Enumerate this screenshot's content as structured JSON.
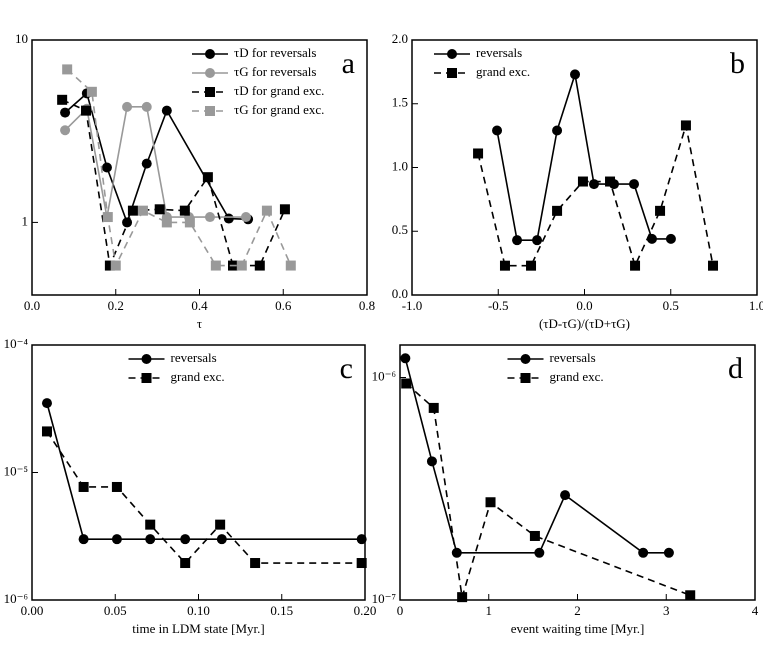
{
  "chart_data": [
    {
      "type": "line",
      "label": "a",
      "xlabel": "τ",
      "xlim": [
        0,
        0.8
      ],
      "xticks": [
        {
          "value": 0,
          "label": "0.0"
        },
        0.2,
        0.4,
        0.6,
        0.8
      ],
      "ylim": [
        0.4,
        10
      ],
      "ylog": true,
      "yticks": [
        1,
        10
      ],
      "legend": "upper right",
      "series": [
        {
          "name": "τD for reversals",
          "color": "#000000",
          "marker": "circle",
          "dashed": false,
          "x": [
            0.079,
            0.131,
            0.179,
            0.227,
            0.274,
            0.322,
            0.47,
            0.516
          ],
          "values": [
            4.0,
            5.1,
            2.0,
            1.0,
            2.1,
            4.1,
            1.05,
            1.04
          ]
        },
        {
          "name": "τG for reversals",
          "color": "#999999",
          "marker": "circle",
          "dashed": false,
          "x": [
            0.079,
            0.131,
            0.179,
            0.227,
            0.274,
            0.322,
            0.375,
            0.425,
            0.511
          ],
          "values": [
            3.2,
            4.2,
            1.07,
            4.3,
            4.3,
            1.07,
            1.07,
            1.07,
            1.07
          ]
        },
        {
          "name": "τD for grand exc.",
          "color": "#000000",
          "marker": "square",
          "dashed": true,
          "x": [
            0.072,
            0.129,
            0.186,
            0.241,
            0.305,
            0.365,
            0.42,
            0.48,
            0.544,
            0.604
          ],
          "values": [
            4.7,
            4.1,
            0.58,
            1.16,
            1.18,
            1.16,
            1.77,
            0.58,
            0.58,
            1.18
          ]
        },
        {
          "name": "τG for grand exc.",
          "color": "#999999",
          "marker": "square",
          "dashed": true,
          "x": [
            0.084,
            0.143,
            0.181,
            0.2,
            0.265,
            0.322,
            0.377,
            0.439,
            0.501,
            0.561,
            0.618
          ],
          "values": [
            6.9,
            5.2,
            1.07,
            0.58,
            1.16,
            1.0,
            1.0,
            0.58,
            0.58,
            1.16,
            0.58
          ]
        }
      ]
    },
    {
      "type": "line",
      "label": "b",
      "xlabel": "(τD-τG)/(τD+τG)",
      "xlim": [
        -1,
        1
      ],
      "xticks": [
        {
          "value": -1,
          "label": "-1.0"
        },
        -0.5,
        {
          "value": 0,
          "label": "0.0"
        },
        0.5,
        {
          "value": 1,
          "label": "1.0"
        }
      ],
      "ylim": [
        0,
        2
      ],
      "yticks": [
        {
          "value": 0,
          "label": "0.0"
        },
        0.5,
        {
          "value": 1,
          "label": "1.0"
        },
        1.5,
        {
          "value": 2,
          "label": "2.0"
        }
      ],
      "legend": "upper left",
      "series": [
        {
          "name": "reversals",
          "color": "#000000",
          "marker": "circle",
          "dashed": false,
          "x": [
            -0.507,
            -0.391,
            -0.275,
            -0.159,
            -0.055,
            0.055,
            0.171,
            0.287,
            0.391,
            0.501
          ],
          "values": [
            1.29,
            0.43,
            0.43,
            1.29,
            1.73,
            0.87,
            0.87,
            0.87,
            0.44,
            0.44
          ]
        },
        {
          "name": "grand exc.",
          "color": "#000000",
          "marker": "square",
          "dashed": true,
          "x": [
            -0.617,
            -0.461,
            -0.31,
            -0.159,
            -0.009,
            0.148,
            0.293,
            0.438,
            0.588,
            0.745
          ],
          "values": [
            1.11,
            0.23,
            0.23,
            0.66,
            0.89,
            0.89,
            0.23,
            0.66,
            1.33,
            0.23
          ]
        }
      ]
    },
    {
      "type": "line",
      "label": "c",
      "xlabel": "time in LDM state  [Myr.]",
      "xlim": [
        0,
        0.2
      ],
      "xticks": [
        {
          "value": 0,
          "label": "0.00"
        },
        {
          "value": 0.05,
          "label": "0.05"
        },
        {
          "value": 0.1,
          "label": "0.10"
        },
        {
          "value": 0.15,
          "label": "0.15"
        },
        {
          "value": 0.2,
          "label": "0.20"
        }
      ],
      "ylim": [
        1e-06,
        0.0001
      ],
      "ylog": true,
      "yticks": [
        {
          "value": 1e-06,
          "label": "10⁻⁶"
        },
        {
          "value": 1e-05,
          "label": "10⁻⁵"
        },
        {
          "value": 0.0001,
          "label": "10⁻⁴"
        }
      ],
      "legend": "upper center",
      "series": [
        {
          "name": "reversals",
          "color": "#000000",
          "marker": "circle",
          "dashed": false,
          "x": [
            0.009,
            0.031,
            0.051,
            0.071,
            0.092,
            0.114,
            0.198
          ],
          "values": [
            3.5e-05,
            3e-06,
            3e-06,
            3e-06,
            3e-06,
            3e-06,
            3e-06
          ]
        },
        {
          "name": "grand exc.",
          "color": "#000000",
          "marker": "square",
          "dashed": true,
          "x": [
            0.009,
            0.031,
            0.051,
            0.071,
            0.092,
            0.113,
            0.134,
            0.198
          ],
          "values": [
            2.1e-05,
            7.7e-06,
            7.7e-06,
            3.9e-06,
            1.95e-06,
            3.9e-06,
            1.95e-06,
            1.95e-06
          ]
        }
      ]
    },
    {
      "type": "line",
      "label": "d",
      "xlabel": "event waiting time [Myr.]",
      "xlim": [
        0,
        4
      ],
      "xticks": [
        0,
        1,
        2,
        3,
        4
      ],
      "ylim": [
        1e-07,
        1.4e-06
      ],
      "ylog": true,
      "yticks": [
        {
          "value": 1e-07,
          "label": "10⁻⁷"
        },
        {
          "value": 1e-06,
          "label": "10⁻⁶"
        }
      ],
      "legend": "upper center",
      "series": [
        {
          "name": "reversals",
          "color": "#000000",
          "marker": "circle",
          "dashed": false,
          "x": [
            0.06,
            0.36,
            0.64,
            1.57,
            1.86,
            2.74,
            3.03
          ],
          "values": [
            1.22e-06,
            4.2e-07,
            1.63e-07,
            1.63e-07,
            2.96e-07,
            1.63e-07,
            1.63e-07
          ]
        },
        {
          "name": "grand exc.",
          "color": "#000000",
          "marker": "square",
          "dashed": true,
          "x": [
            0.07,
            0.38,
            0.7,
            1.02,
            1.52,
            3.27
          ],
          "values": [
            9.4e-07,
            7.3e-07,
            1.03e-07,
            2.75e-07,
            1.94e-07,
            1.05e-07
          ]
        }
      ]
    }
  ]
}
